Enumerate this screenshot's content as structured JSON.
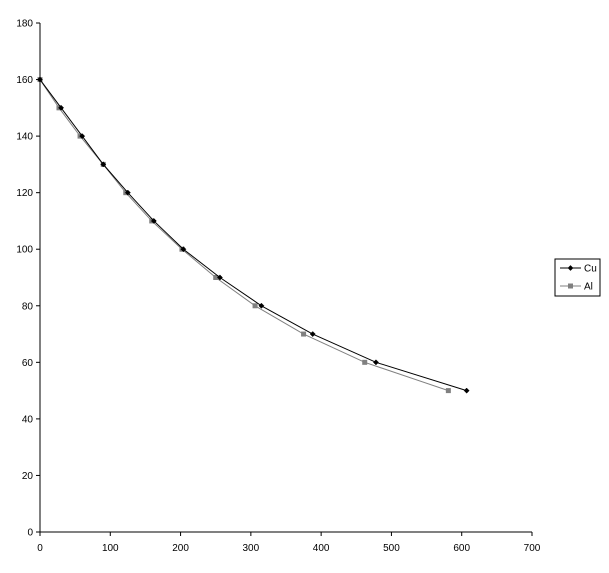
{
  "chart_data": {
    "type": "line",
    "title": "",
    "xlabel": "",
    "ylabel": "",
    "xlim": [
      0,
      700
    ],
    "ylim": [
      0,
      180
    ],
    "xticks": [
      0,
      100,
      200,
      300,
      400,
      500,
      600,
      700
    ],
    "yticks": [
      0,
      20,
      40,
      60,
      80,
      100,
      120,
      140,
      160,
      180
    ],
    "grid": false,
    "legend_position": "right",
    "series": [
      {
        "name": "Cu",
        "color": "#000000",
        "marker": "diamond",
        "points": [
          {
            "x": 0,
            "y": 160
          },
          {
            "x": 30,
            "y": 150
          },
          {
            "x": 60,
            "y": 140
          },
          {
            "x": 90,
            "y": 130
          },
          {
            "x": 125,
            "y": 120
          },
          {
            "x": 162,
            "y": 110
          },
          {
            "x": 204,
            "y": 100
          },
          {
            "x": 256,
            "y": 90
          },
          {
            "x": 315,
            "y": 80
          },
          {
            "x": 388,
            "y": 70
          },
          {
            "x": 478,
            "y": 60
          },
          {
            "x": 607,
            "y": 50
          }
        ]
      },
      {
        "name": "Al",
        "color": "#808080",
        "marker": "square",
        "points": [
          {
            "x": 0,
            "y": 160
          },
          {
            "x": 27,
            "y": 150
          },
          {
            "x": 57,
            "y": 140
          },
          {
            "x": 90,
            "y": 130
          },
          {
            "x": 122,
            "y": 120
          },
          {
            "x": 159,
            "y": 110
          },
          {
            "x": 202,
            "y": 100
          },
          {
            "x": 250,
            "y": 90
          },
          {
            "x": 306,
            "y": 80
          },
          {
            "x": 375,
            "y": 70
          },
          {
            "x": 462,
            "y": 60
          },
          {
            "x": 581,
            "y": 50
          }
        ]
      }
    ]
  }
}
